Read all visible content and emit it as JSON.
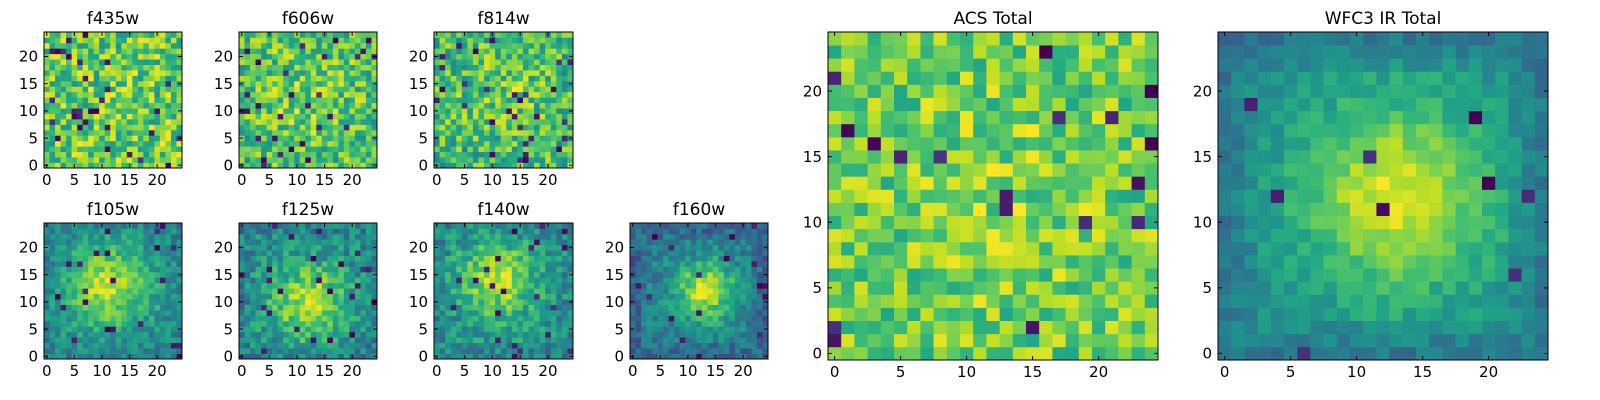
{
  "figure": {
    "description_free": true
  },
  "chart_data": [
    {
      "type": "heatmap",
      "title": "f435w",
      "shape": [
        25,
        25
      ],
      "colormap": "viridis",
      "xticks": [
        "0",
        "5",
        "10",
        "15",
        "20"
      ],
      "yticks": [
        "0",
        "5",
        "10",
        "15",
        "20"
      ],
      "xlim": [
        -0.5,
        24.5
      ],
      "ylim": [
        -0.5,
        24.5
      ],
      "pattern": {
        "seed": 11,
        "base": 0.68,
        "bump": 0.0,
        "cx": 12,
        "cy": 12,
        "sigma": 6,
        "noise": 0.22,
        "darkProb": 0.045,
        "edge": 0.0
      }
    },
    {
      "type": "heatmap",
      "title": "f606w",
      "shape": [
        25,
        25
      ],
      "colormap": "viridis",
      "xticks": [
        "0",
        "5",
        "10",
        "15",
        "20"
      ],
      "yticks": [
        "0",
        "5",
        "10",
        "15",
        "20"
      ],
      "xlim": [
        -0.5,
        24.5
      ],
      "ylim": [
        -0.5,
        24.5
      ],
      "pattern": {
        "seed": 23,
        "base": 0.62,
        "bump": 0.08,
        "cx": 12,
        "cy": 12,
        "sigma": 6,
        "noise": 0.2,
        "darkProb": 0.04,
        "edge": 0.0
      }
    },
    {
      "type": "heatmap",
      "title": "f814w",
      "shape": [
        25,
        25
      ],
      "colormap": "viridis",
      "xticks": [
        "0",
        "5",
        "10",
        "15",
        "20"
      ],
      "yticks": [
        "0",
        "5",
        "10",
        "15",
        "20"
      ],
      "xlim": [
        -0.5,
        24.5
      ],
      "ylim": [
        -0.5,
        24.5
      ],
      "pattern": {
        "seed": 37,
        "base": 0.62,
        "bump": 0.1,
        "cx": 12,
        "cy": 13,
        "sigma": 6,
        "noise": 0.22,
        "darkProb": 0.04,
        "edge": 0.0
      }
    },
    {
      "type": "heatmap",
      "title": "f105w",
      "shape": [
        25,
        25
      ],
      "colormap": "viridis",
      "xticks": [
        "0",
        "5",
        "10",
        "15",
        "20"
      ],
      "yticks": [
        "0",
        "5",
        "10",
        "15",
        "20"
      ],
      "xlim": [
        -0.5,
        24.5
      ],
      "ylim": [
        -0.5,
        24.5
      ],
      "pattern": {
        "seed": 41,
        "base": 0.5,
        "bump": 0.42,
        "cx": 11,
        "cy": 13,
        "sigma": 5,
        "noise": 0.14,
        "darkProb": 0.03,
        "edge": 0.05
      }
    },
    {
      "type": "heatmap",
      "title": "f125w",
      "shape": [
        25,
        25
      ],
      "colormap": "viridis",
      "xticks": [
        "0",
        "5",
        "10",
        "15",
        "20"
      ],
      "yticks": [
        "0",
        "5",
        "10",
        "15",
        "20"
      ],
      "xlim": [
        -0.5,
        24.5
      ],
      "ylim": [
        -0.5,
        24.5
      ],
      "pattern": {
        "seed": 53,
        "base": 0.48,
        "bump": 0.4,
        "cx": 12,
        "cy": 10,
        "sigma": 5,
        "noise": 0.16,
        "darkProb": 0.035,
        "edge": 0.05
      }
    },
    {
      "type": "heatmap",
      "title": "f140w",
      "shape": [
        25,
        25
      ],
      "colormap": "viridis",
      "xticks": [
        "0",
        "5",
        "10",
        "15",
        "20"
      ],
      "yticks": [
        "0",
        "5",
        "10",
        "15",
        "20"
      ],
      "xlim": [
        -0.5,
        24.5
      ],
      "ylim": [
        -0.5,
        24.5
      ],
      "pattern": {
        "seed": 67,
        "base": 0.5,
        "bump": 0.38,
        "cx": 11,
        "cy": 14,
        "sigma": 5,
        "noise": 0.16,
        "darkProb": 0.035,
        "edge": 0.05
      }
    },
    {
      "type": "heatmap",
      "title": "f160w",
      "shape": [
        25,
        25
      ],
      "colormap": "viridis",
      "xticks": [
        "0",
        "5",
        "10",
        "15",
        "20"
      ],
      "yticks": [
        "0",
        "5",
        "10",
        "15",
        "20"
      ],
      "xlim": [
        -0.5,
        24.5
      ],
      "ylim": [
        -0.5,
        24.5
      ],
      "pattern": {
        "seed": 71,
        "base": 0.42,
        "bump": 0.48,
        "cx": 13,
        "cy": 12,
        "sigma": 4,
        "noise": 0.13,
        "darkProb": 0.025,
        "edge": 0.12
      }
    },
    {
      "type": "heatmap",
      "title": "ACS Total",
      "shape": [
        25,
        25
      ],
      "colormap": "viridis",
      "xticks": [
        "0",
        "5",
        "10",
        "15",
        "20"
      ],
      "yticks": [
        "0",
        "5",
        "10",
        "15",
        "20"
      ],
      "xlim": [
        -0.5,
        24.5
      ],
      "ylim": [
        -0.5,
        24.5
      ],
      "pattern": {
        "seed": 83,
        "base": 0.68,
        "bump": 0.06,
        "cx": 12,
        "cy": 12,
        "sigma": 7,
        "noise": 0.17,
        "darkProb": 0.025,
        "edge": 0.0
      }
    },
    {
      "type": "heatmap",
      "title": "WFC3 IR Total",
      "shape": [
        25,
        25
      ],
      "colormap": "viridis",
      "xticks": [
        "0",
        "5",
        "10",
        "15",
        "20"
      ],
      "yticks": [
        "0",
        "5",
        "10",
        "15",
        "20"
      ],
      "xlim": [
        -0.5,
        24.5
      ],
      "ylim": [
        -0.5,
        24.5
      ],
      "pattern": {
        "seed": 97,
        "base": 0.5,
        "bump": 0.45,
        "cx": 13,
        "cy": 12,
        "sigma": 5,
        "noise": 0.08,
        "darkProb": 0.015,
        "edge": 0.12
      }
    }
  ]
}
